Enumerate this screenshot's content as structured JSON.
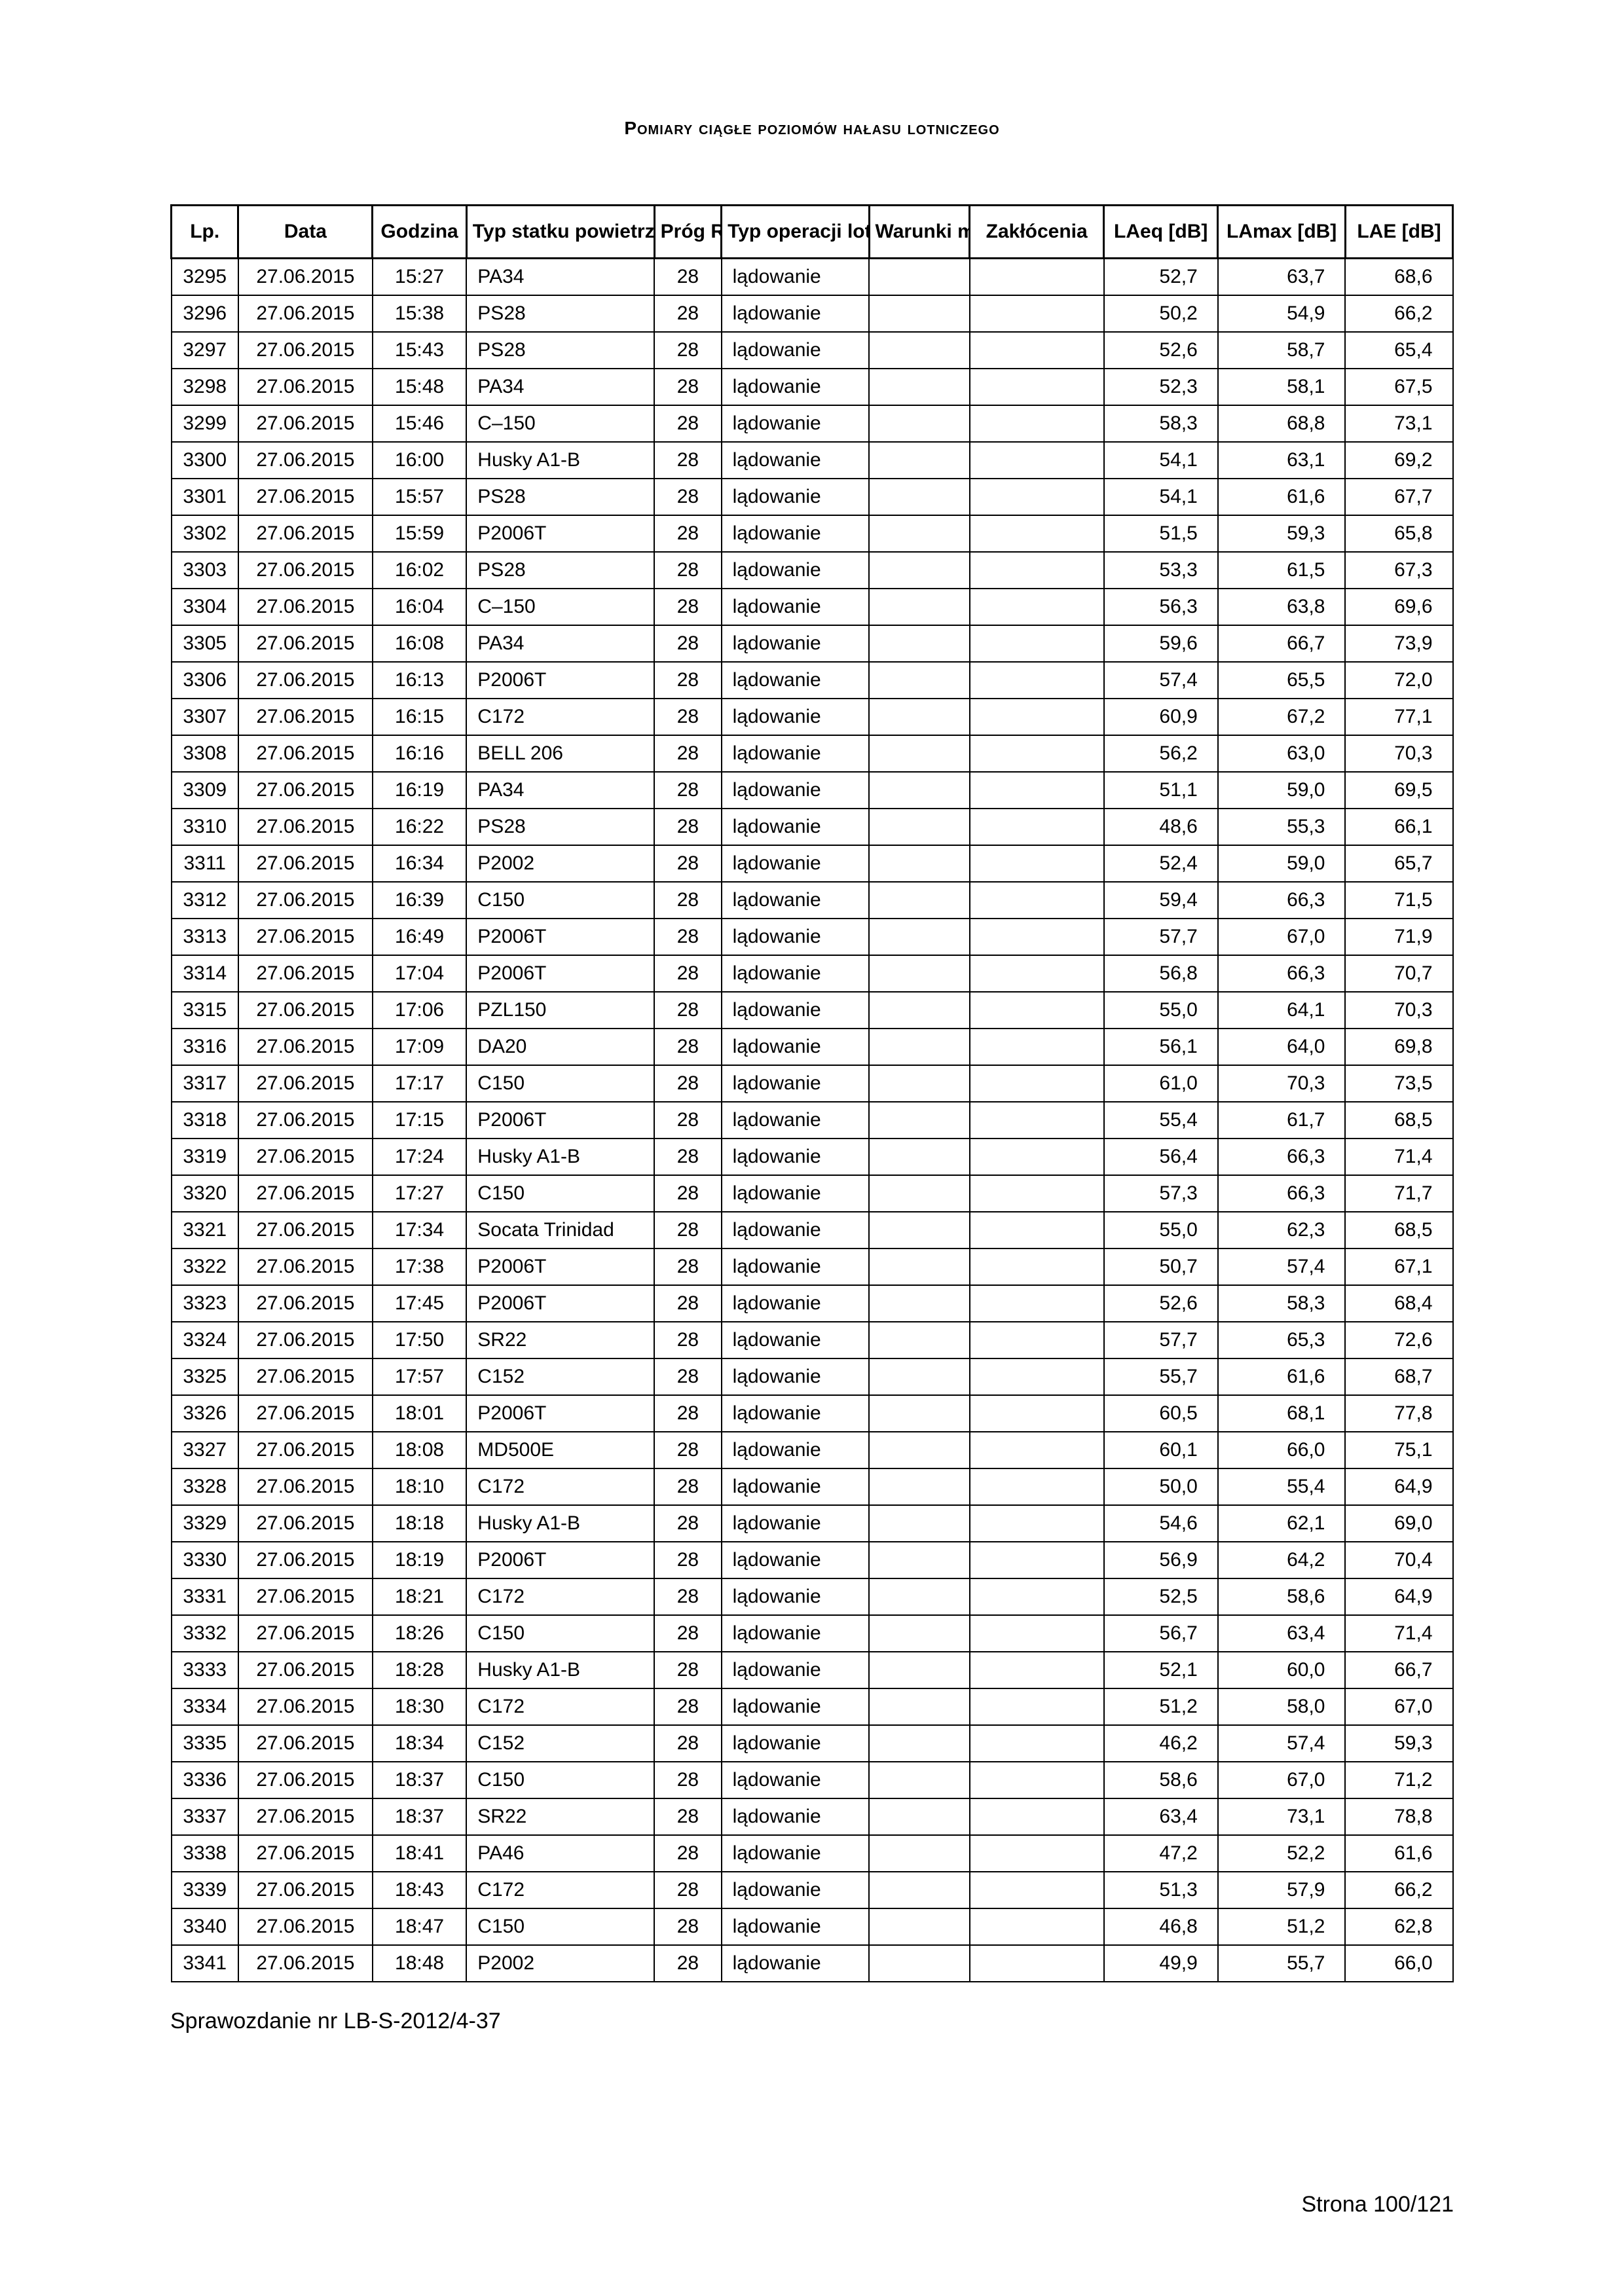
{
  "title": "Pomiary ciągłe poziomów hałasu lotniczego",
  "columns": [
    "Lp.",
    "Data",
    "Godzina",
    "Typ statku powietrznego",
    "Próg RWY",
    "Typ operacji lotniczej",
    "Warunki meteo",
    "Zakłócenia",
    "LAeq [dB]",
    "LAmax [dB]",
    "LAE [dB]"
  ],
  "rows": [
    [
      "3295",
      "27.06.2015",
      "15:27",
      "PA34",
      "28",
      "lądowanie",
      "",
      "",
      "52,7",
      "63,7",
      "68,6"
    ],
    [
      "3296",
      "27.06.2015",
      "15:38",
      "PS28",
      "28",
      "lądowanie",
      "",
      "",
      "50,2",
      "54,9",
      "66,2"
    ],
    [
      "3297",
      "27.06.2015",
      "15:43",
      "PS28",
      "28",
      "lądowanie",
      "",
      "",
      "52,6",
      "58,7",
      "65,4"
    ],
    [
      "3298",
      "27.06.2015",
      "15:48",
      "PA34",
      "28",
      "lądowanie",
      "",
      "",
      "52,3",
      "58,1",
      "67,5"
    ],
    [
      "3299",
      "27.06.2015",
      "15:46",
      "C–150",
      "28",
      "lądowanie",
      "",
      "",
      "58,3",
      "68,8",
      "73,1"
    ],
    [
      "3300",
      "27.06.2015",
      "16:00",
      "Husky A1-B",
      "28",
      "lądowanie",
      "",
      "",
      "54,1",
      "63,1",
      "69,2"
    ],
    [
      "3301",
      "27.06.2015",
      "15:57",
      "PS28",
      "28",
      "lądowanie",
      "",
      "",
      "54,1",
      "61,6",
      "67,7"
    ],
    [
      "3302",
      "27.06.2015",
      "15:59",
      "P2006T",
      "28",
      "lądowanie",
      "",
      "",
      "51,5",
      "59,3",
      "65,8"
    ],
    [
      "3303",
      "27.06.2015",
      "16:02",
      "PS28",
      "28",
      "lądowanie",
      "",
      "",
      "53,3",
      "61,5",
      "67,3"
    ],
    [
      "3304",
      "27.06.2015",
      "16:04",
      "C–150",
      "28",
      "lądowanie",
      "",
      "",
      "56,3",
      "63,8",
      "69,6"
    ],
    [
      "3305",
      "27.06.2015",
      "16:08",
      "PA34",
      "28",
      "lądowanie",
      "",
      "",
      "59,6",
      "66,7",
      "73,9"
    ],
    [
      "3306",
      "27.06.2015",
      "16:13",
      "P2006T",
      "28",
      "lądowanie",
      "",
      "",
      "57,4",
      "65,5",
      "72,0"
    ],
    [
      "3307",
      "27.06.2015",
      "16:15",
      "C172",
      "28",
      "lądowanie",
      "",
      "",
      "60,9",
      "67,2",
      "77,1"
    ],
    [
      "3308",
      "27.06.2015",
      "16:16",
      "BELL 206",
      "28",
      "lądowanie",
      "",
      "",
      "56,2",
      "63,0",
      "70,3"
    ],
    [
      "3309",
      "27.06.2015",
      "16:19",
      "PA34",
      "28",
      "lądowanie",
      "",
      "",
      "51,1",
      "59,0",
      "69,5"
    ],
    [
      "3310",
      "27.06.2015",
      "16:22",
      "PS28",
      "28",
      "lądowanie",
      "",
      "",
      "48,6",
      "55,3",
      "66,1"
    ],
    [
      "3311",
      "27.06.2015",
      "16:34",
      "P2002",
      "28",
      "lądowanie",
      "",
      "",
      "52,4",
      "59,0",
      "65,7"
    ],
    [
      "3312",
      "27.06.2015",
      "16:39",
      "C150",
      "28",
      "lądowanie",
      "",
      "",
      "59,4",
      "66,3",
      "71,5"
    ],
    [
      "3313",
      "27.06.2015",
      "16:49",
      "P2006T",
      "28",
      "lądowanie",
      "",
      "",
      "57,7",
      "67,0",
      "71,9"
    ],
    [
      "3314",
      "27.06.2015",
      "17:04",
      "P2006T",
      "28",
      "lądowanie",
      "",
      "",
      "56,8",
      "66,3",
      "70,7"
    ],
    [
      "3315",
      "27.06.2015",
      "17:06",
      "PZL150",
      "28",
      "lądowanie",
      "",
      "",
      "55,0",
      "64,1",
      "70,3"
    ],
    [
      "3316",
      "27.06.2015",
      "17:09",
      "DA20",
      "28",
      "lądowanie",
      "",
      "",
      "56,1",
      "64,0",
      "69,8"
    ],
    [
      "3317",
      "27.06.2015",
      "17:17",
      "C150",
      "28",
      "lądowanie",
      "",
      "",
      "61,0",
      "70,3",
      "73,5"
    ],
    [
      "3318",
      "27.06.2015",
      "17:15",
      "P2006T",
      "28",
      "lądowanie",
      "",
      "",
      "55,4",
      "61,7",
      "68,5"
    ],
    [
      "3319",
      "27.06.2015",
      "17:24",
      "Husky A1-B",
      "28",
      "lądowanie",
      "",
      "",
      "56,4",
      "66,3",
      "71,4"
    ],
    [
      "3320",
      "27.06.2015",
      "17:27",
      "C150",
      "28",
      "lądowanie",
      "",
      "",
      "57,3",
      "66,3",
      "71,7"
    ],
    [
      "3321",
      "27.06.2015",
      "17:34",
      "Socata Trinidad",
      "28",
      "lądowanie",
      "",
      "",
      "55,0",
      "62,3",
      "68,5"
    ],
    [
      "3322",
      "27.06.2015",
      "17:38",
      "P2006T",
      "28",
      "lądowanie",
      "",
      "",
      "50,7",
      "57,4",
      "67,1"
    ],
    [
      "3323",
      "27.06.2015",
      "17:45",
      "P2006T",
      "28",
      "lądowanie",
      "",
      "",
      "52,6",
      "58,3",
      "68,4"
    ],
    [
      "3324",
      "27.06.2015",
      "17:50",
      "SR22",
      "28",
      "lądowanie",
      "",
      "",
      "57,7",
      "65,3",
      "72,6"
    ],
    [
      "3325",
      "27.06.2015",
      "17:57",
      "C152",
      "28",
      "lądowanie",
      "",
      "",
      "55,7",
      "61,6",
      "68,7"
    ],
    [
      "3326",
      "27.06.2015",
      "18:01",
      "P2006T",
      "28",
      "lądowanie",
      "",
      "",
      "60,5",
      "68,1",
      "77,8"
    ],
    [
      "3327",
      "27.06.2015",
      "18:08",
      "MD500E",
      "28",
      "lądowanie",
      "",
      "",
      "60,1",
      "66,0",
      "75,1"
    ],
    [
      "3328",
      "27.06.2015",
      "18:10",
      "C172",
      "28",
      "lądowanie",
      "",
      "",
      "50,0",
      "55,4",
      "64,9"
    ],
    [
      "3329",
      "27.06.2015",
      "18:18",
      "Husky A1-B",
      "28",
      "lądowanie",
      "",
      "",
      "54,6",
      "62,1",
      "69,0"
    ],
    [
      "3330",
      "27.06.2015",
      "18:19",
      "P2006T",
      "28",
      "lądowanie",
      "",
      "",
      "56,9",
      "64,2",
      "70,4"
    ],
    [
      "3331",
      "27.06.2015",
      "18:21",
      "C172",
      "28",
      "lądowanie",
      "",
      "",
      "52,5",
      "58,6",
      "64,9"
    ],
    [
      "3332",
      "27.06.2015",
      "18:26",
      "C150",
      "28",
      "lądowanie",
      "",
      "",
      "56,7",
      "63,4",
      "71,4"
    ],
    [
      "3333",
      "27.06.2015",
      "18:28",
      "Husky A1-B",
      "28",
      "lądowanie",
      "",
      "",
      "52,1",
      "60,0",
      "66,7"
    ],
    [
      "3334",
      "27.06.2015",
      "18:30",
      "C172",
      "28",
      "lądowanie",
      "",
      "",
      "51,2",
      "58,0",
      "67,0"
    ],
    [
      "3335",
      "27.06.2015",
      "18:34",
      "C152",
      "28",
      "lądowanie",
      "",
      "",
      "46,2",
      "57,4",
      "59,3"
    ],
    [
      "3336",
      "27.06.2015",
      "18:37",
      "C150",
      "28",
      "lądowanie",
      "",
      "",
      "58,6",
      "67,0",
      "71,2"
    ],
    [
      "3337",
      "27.06.2015",
      "18:37",
      "SR22",
      "28",
      "lądowanie",
      "",
      "",
      "63,4",
      "73,1",
      "78,8"
    ],
    [
      "3338",
      "27.06.2015",
      "18:41",
      "PA46",
      "28",
      "lądowanie",
      "",
      "",
      "47,2",
      "52,2",
      "61,6"
    ],
    [
      "3339",
      "27.06.2015",
      "18:43",
      "C172",
      "28",
      "lądowanie",
      "",
      "",
      "51,3",
      "57,9",
      "66,2"
    ],
    [
      "3340",
      "27.06.2015",
      "18:47",
      "C150",
      "28",
      "lądowanie",
      "",
      "",
      "46,8",
      "51,2",
      "62,8"
    ],
    [
      "3341",
      "27.06.2015",
      "18:48",
      "P2002",
      "28",
      "lądowanie",
      "",
      "",
      "49,9",
      "55,7",
      "66,0"
    ]
  ],
  "footer_left": "Sprawozdanie nr LB-S-2012/4-37",
  "footer_right": "Strona 100/121"
}
